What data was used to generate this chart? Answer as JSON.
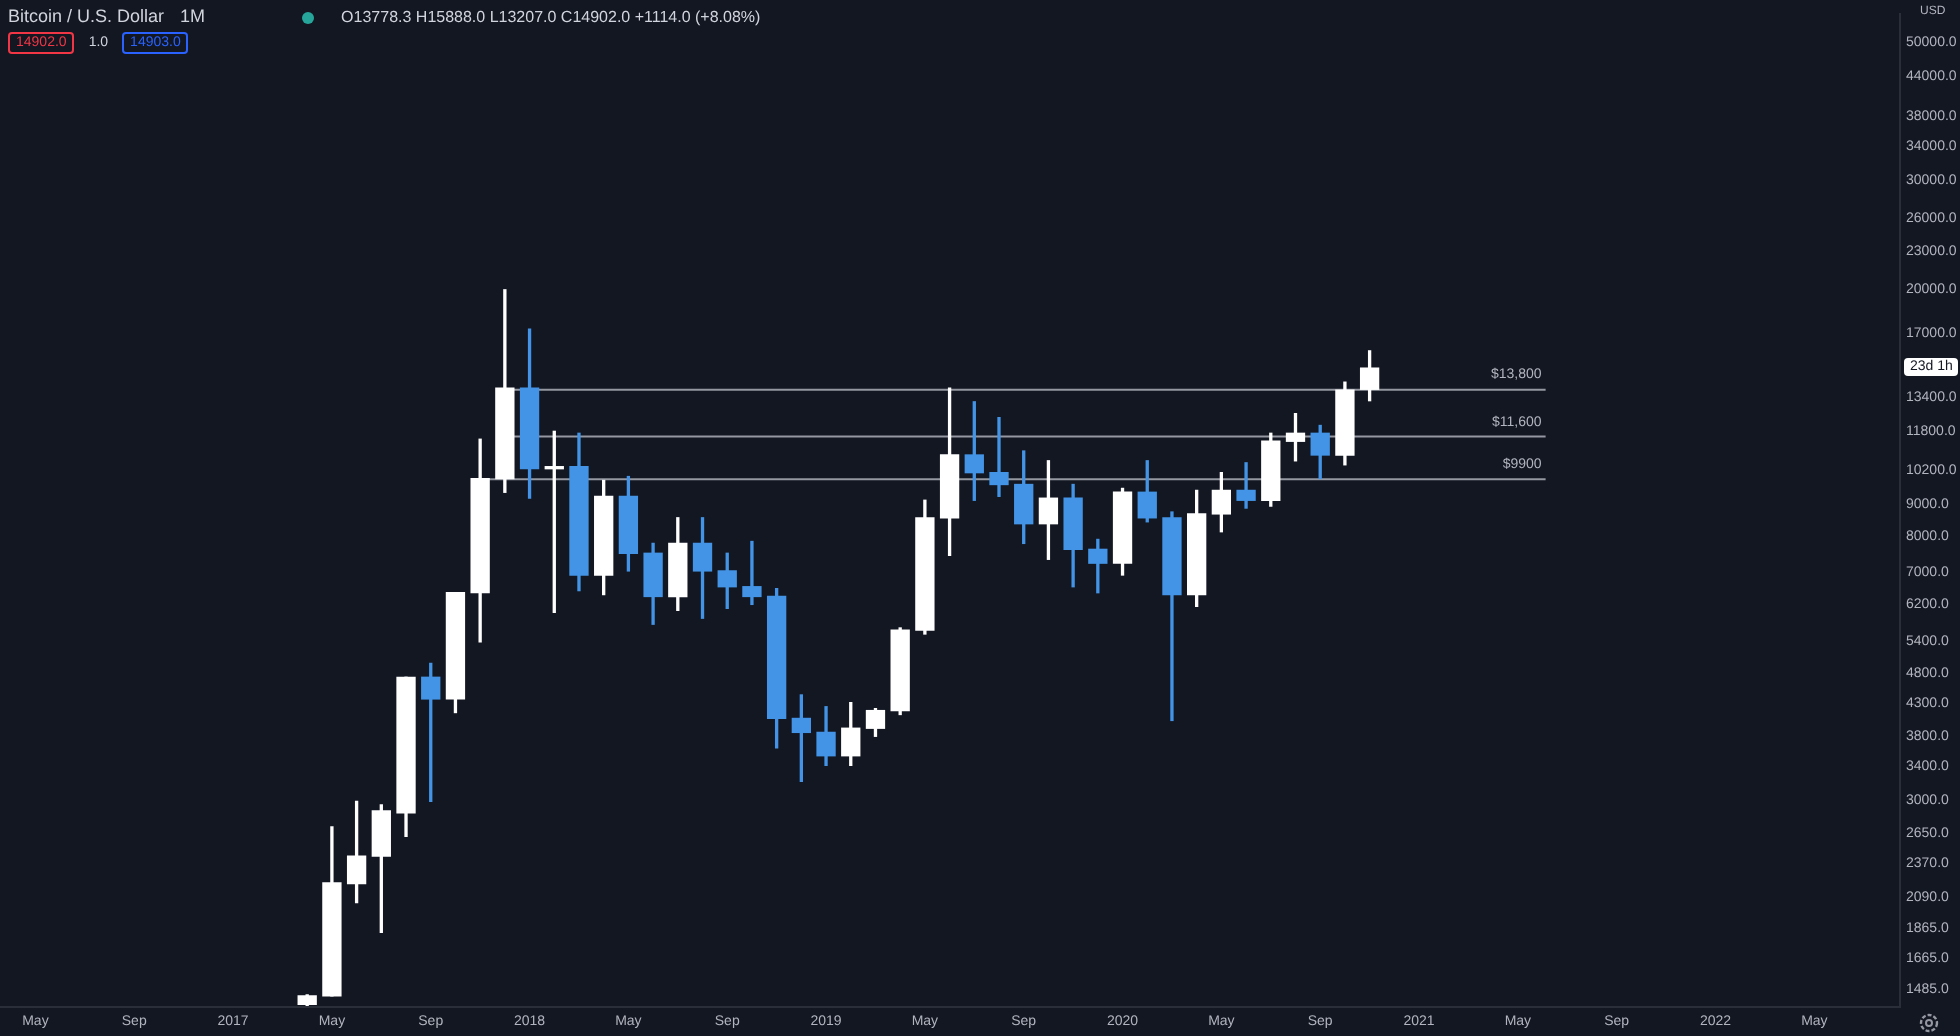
{
  "chart_data": {
    "type": "candlestick",
    "title": "Bitcoin / U.S. Dollar",
    "subtitle": "O13778.3 H15888.0 L13207.0 C14902.0 +1114.0 (+8.08%)",
    "ylabel": "USD",
    "annotations": [
      "1M",
      "14902.0",
      "1.0",
      "14903.0",
      "23d 1h"
    ],
    "x": [
      "2017-04",
      "2017-05",
      "2017-06",
      "2017-07",
      "2017-08",
      "2017-09",
      "2017-10",
      "2017-11",
      "2017-12",
      "2018-01",
      "2018-02",
      "2018-03",
      "2018-04",
      "2018-05",
      "2018-06",
      "2018-07",
      "2018-08",
      "2018-09",
      "2018-10",
      "2018-11",
      "2018-12",
      "2019-01",
      "2019-02",
      "2019-03",
      "2019-04",
      "2019-05",
      "2019-06",
      "2019-07",
      "2019-08",
      "2019-09",
      "2019-10",
      "2019-11",
      "2019-12",
      "2020-01",
      "2020-02",
      "2020-03",
      "2020-04",
      "2020-05",
      "2020-06",
      "2020-07",
      "2020-08",
      "2020-09",
      "2020-10",
      "2020-11"
    ],
    "ohlc": [
      [
        1405,
        1455,
        1400,
        1450
      ],
      [
        1450,
        2715,
        1450,
        2205
      ],
      [
        2200,
        2985,
        2050,
        2435
      ],
      [
        2435,
        2945,
        1835,
        2880
      ],
      [
        2860,
        4730,
        2620,
        4730
      ],
      [
        4730,
        4980,
        2985,
        4365
      ],
      [
        4365,
        6475,
        4150,
        6475
      ],
      [
        6475,
        11445,
        5395,
        9890
      ],
      [
        9890,
        19930,
        9400,
        13835
      ],
      [
        13835,
        17225,
        9195,
        10260
      ],
      [
        10260,
        11785,
        6020,
        10335
      ],
      [
        10335,
        11700,
        6525,
        6915
      ],
      [
        6915,
        9820,
        6430,
        9260
      ],
      [
        9260,
        9965,
        7020,
        7495
      ],
      [
        7495,
        7775,
        5760,
        6385
      ],
      [
        6385,
        8550,
        6065,
        7775
      ],
      [
        7775,
        8550,
        5890,
        7020
      ],
      [
        7020,
        7495,
        6110,
        6620
      ],
      [
        6620,
        7830,
        6200,
        6385
      ],
      [
        6385,
        6570,
        3640,
        4060
      ],
      [
        4060,
        4430,
        3215,
        3855
      ],
      [
        3855,
        4240,
        3410,
        3535
      ],
      [
        3535,
        4305,
        3410,
        3915
      ],
      [
        3915,
        4210,
        3800,
        4180
      ],
      [
        4180,
        5680,
        4120,
        5635
      ],
      [
        5635,
        9125,
        5555,
        8550
      ],
      [
        8550,
        13835,
        7440,
        10795
      ],
      [
        10795,
        13150,
        9125,
        10110
      ],
      [
        10110,
        12400,
        9260,
        9675
      ],
      [
        9675,
        10955,
        7775,
        8365
      ],
      [
        8365,
        10565,
        7330,
        9195
      ],
      [
        9195,
        9675,
        6620,
        7605
      ],
      [
        7605,
        7890,
        6475,
        7225
      ],
      [
        7225,
        9535,
        6915,
        9400
      ],
      [
        9400,
        10565,
        8425,
        8550
      ],
      [
        8550,
        8735,
        4030,
        6430
      ],
      [
        6430,
        9465,
        6155,
        8675
      ],
      [
        8675,
        10110,
        8120,
        9465
      ],
      [
        9465,
        10485,
        8865,
        9125
      ],
      [
        9125,
        11700,
        8930,
        11360
      ],
      [
        11360,
        12585,
        10565,
        11700
      ],
      [
        11700,
        12045,
        9890,
        10795
      ],
      [
        10795,
        14145,
        10410,
        13735
      ],
      [
        13778.3,
        15888,
        13207,
        14902
      ]
    ],
    "colors": [
      "#ffffff",
      "#ffffff",
      "#ffffff",
      "#ffffff",
      "#ffffff",
      "#4394e6",
      "#ffffff",
      "#ffffff",
      "#ffffff",
      "#4394e6",
      "#ffffff",
      "#4394e6",
      "#ffffff",
      "#4394e6",
      "#4394e6",
      "#ffffff",
      "#4394e6",
      "#4394e6",
      "#4394e6",
      "#4394e6",
      "#4394e6",
      "#4394e6",
      "#ffffff",
      "#ffffff",
      "#ffffff",
      "#ffffff",
      "#ffffff",
      "#4394e6",
      "#4394e6",
      "#4394e6",
      "#ffffff",
      "#4394e6",
      "#4394e6",
      "#ffffff",
      "#4394e6",
      "#4394e6",
      "#ffffff",
      "#ffffff",
      "#4394e6",
      "#ffffff",
      "#ffffff",
      "#4394e6",
      "#ffffff",
      "#ffffff"
    ],
    "log": "y",
    "ylim": [
      1390,
      55400
    ],
    "yticks": [
      {
        "value": 1485,
        "label": "1485.0"
      },
      {
        "value": 1665,
        "label": "1665.0"
      },
      {
        "value": 1865,
        "label": "1865.0"
      },
      {
        "value": 2090,
        "label": "2090.0"
      },
      {
        "value": 2370,
        "label": "2370.0"
      },
      {
        "value": 2650,
        "label": "2650.0"
      },
      {
        "value": 3000,
        "label": "3000.0"
      },
      {
        "value": 3400,
        "label": "3400.0"
      },
      {
        "value": 3800,
        "label": "3800.0"
      },
      {
        "value": 4300,
        "label": "4300.0"
      },
      {
        "value": 4800,
        "label": "4800.0"
      },
      {
        "value": 5400,
        "label": "5400.0"
      },
      {
        "value": 6200,
        "label": "6200.0"
      },
      {
        "value": 7000,
        "label": "7000.0"
      },
      {
        "value": 8000,
        "label": "8000.0"
      },
      {
        "value": 9000,
        "label": "9000.0"
      },
      {
        "value": 10200,
        "label": "10200.0"
      },
      {
        "value": 11800,
        "label": "11800.0"
      },
      {
        "value": 13400,
        "label": "13400.0"
      },
      {
        "value": 17000,
        "label": "17000.0"
      },
      {
        "value": 20000,
        "label": "20000.0"
      },
      {
        "value": 23000,
        "label": "23000.0"
      },
      {
        "value": 26000,
        "label": "26000.0"
      },
      {
        "value": 30000,
        "label": "30000.0"
      },
      {
        "value": 34000,
        "label": "34000.0"
      },
      {
        "value": 38000,
        "label": "38000.0"
      },
      {
        "value": 44000,
        "label": "44000.0"
      },
      {
        "value": 50000,
        "label": "50000.0"
      }
    ],
    "xlim": [
      "2016-03-18",
      "2022-08-15"
    ],
    "xticks": [
      {
        "value": "2016-05",
        "label": "May"
      },
      {
        "value": "2016-09",
        "label": "Sep"
      },
      {
        "value": "2017-01",
        "label": "2017"
      },
      {
        "value": "2017-05",
        "label": "May"
      },
      {
        "value": "2017-09",
        "label": "Sep"
      },
      {
        "value": "2018-01",
        "label": "2018"
      },
      {
        "value": "2018-05",
        "label": "May"
      },
      {
        "value": "2018-09",
        "label": "Sep"
      },
      {
        "value": "2019-01",
        "label": "2019"
      },
      {
        "value": "2019-05",
        "label": "May"
      },
      {
        "value": "2019-09",
        "label": "Sep"
      },
      {
        "value": "2020-01",
        "label": "2020"
      },
      {
        "value": "2020-05",
        "label": "May"
      },
      {
        "value": "2020-09",
        "label": "Sep"
      },
      {
        "value": "2021-01",
        "label": "2021"
      },
      {
        "value": "2021-05",
        "label": "May"
      },
      {
        "value": "2021-09",
        "label": "Sep"
      },
      {
        "value": "2022-01",
        "label": "2022"
      },
      {
        "value": "2022-05",
        "label": "May"
      }
    ],
    "ref_lines": [
      {
        "axis": "y",
        "value": 13800,
        "label": "$13,800",
        "color": "#9598a1"
      },
      {
        "axis": "y",
        "value": 11600,
        "label": "$11,600",
        "color": "#9598a1"
      },
      {
        "axis": "y",
        "value": 9900,
        "label": "$9900",
        "color": "#9598a1"
      }
    ],
    "legend": false
  }
}
